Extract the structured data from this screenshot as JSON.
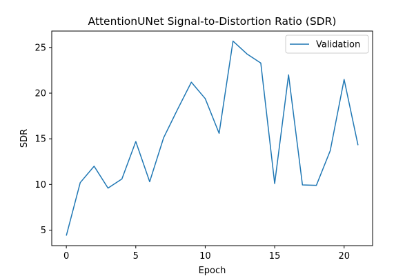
{
  "chart_data": {
    "type": "line",
    "title": "AttentionUNet Signal-to-Distortion Ratio (SDR)",
    "xlabel": "Epoch",
    "ylabel": "SDR",
    "xlim": [
      -1.05,
      22.05
    ],
    "ylim": [
      3.3,
      26.8
    ],
    "xticks": [
      0,
      5,
      10,
      15,
      20
    ],
    "yticks": [
      5,
      10,
      15,
      20,
      25
    ],
    "grid": false,
    "legend_position": "top-right",
    "series": [
      {
        "name": "Validation",
        "color": "#1f77b4",
        "x": [
          0,
          1,
          2,
          3,
          4,
          5,
          6,
          7,
          8,
          9,
          10,
          11,
          12,
          13,
          14,
          15,
          16,
          17,
          18,
          19,
          20,
          21
        ],
        "values": [
          4.4,
          10.2,
          12.0,
          9.6,
          10.6,
          14.7,
          10.3,
          15.1,
          18.2,
          21.2,
          19.4,
          15.6,
          25.7,
          24.3,
          23.3,
          10.1,
          22.0,
          9.95,
          9.9,
          13.7,
          21.5,
          14.3
        ]
      }
    ]
  }
}
